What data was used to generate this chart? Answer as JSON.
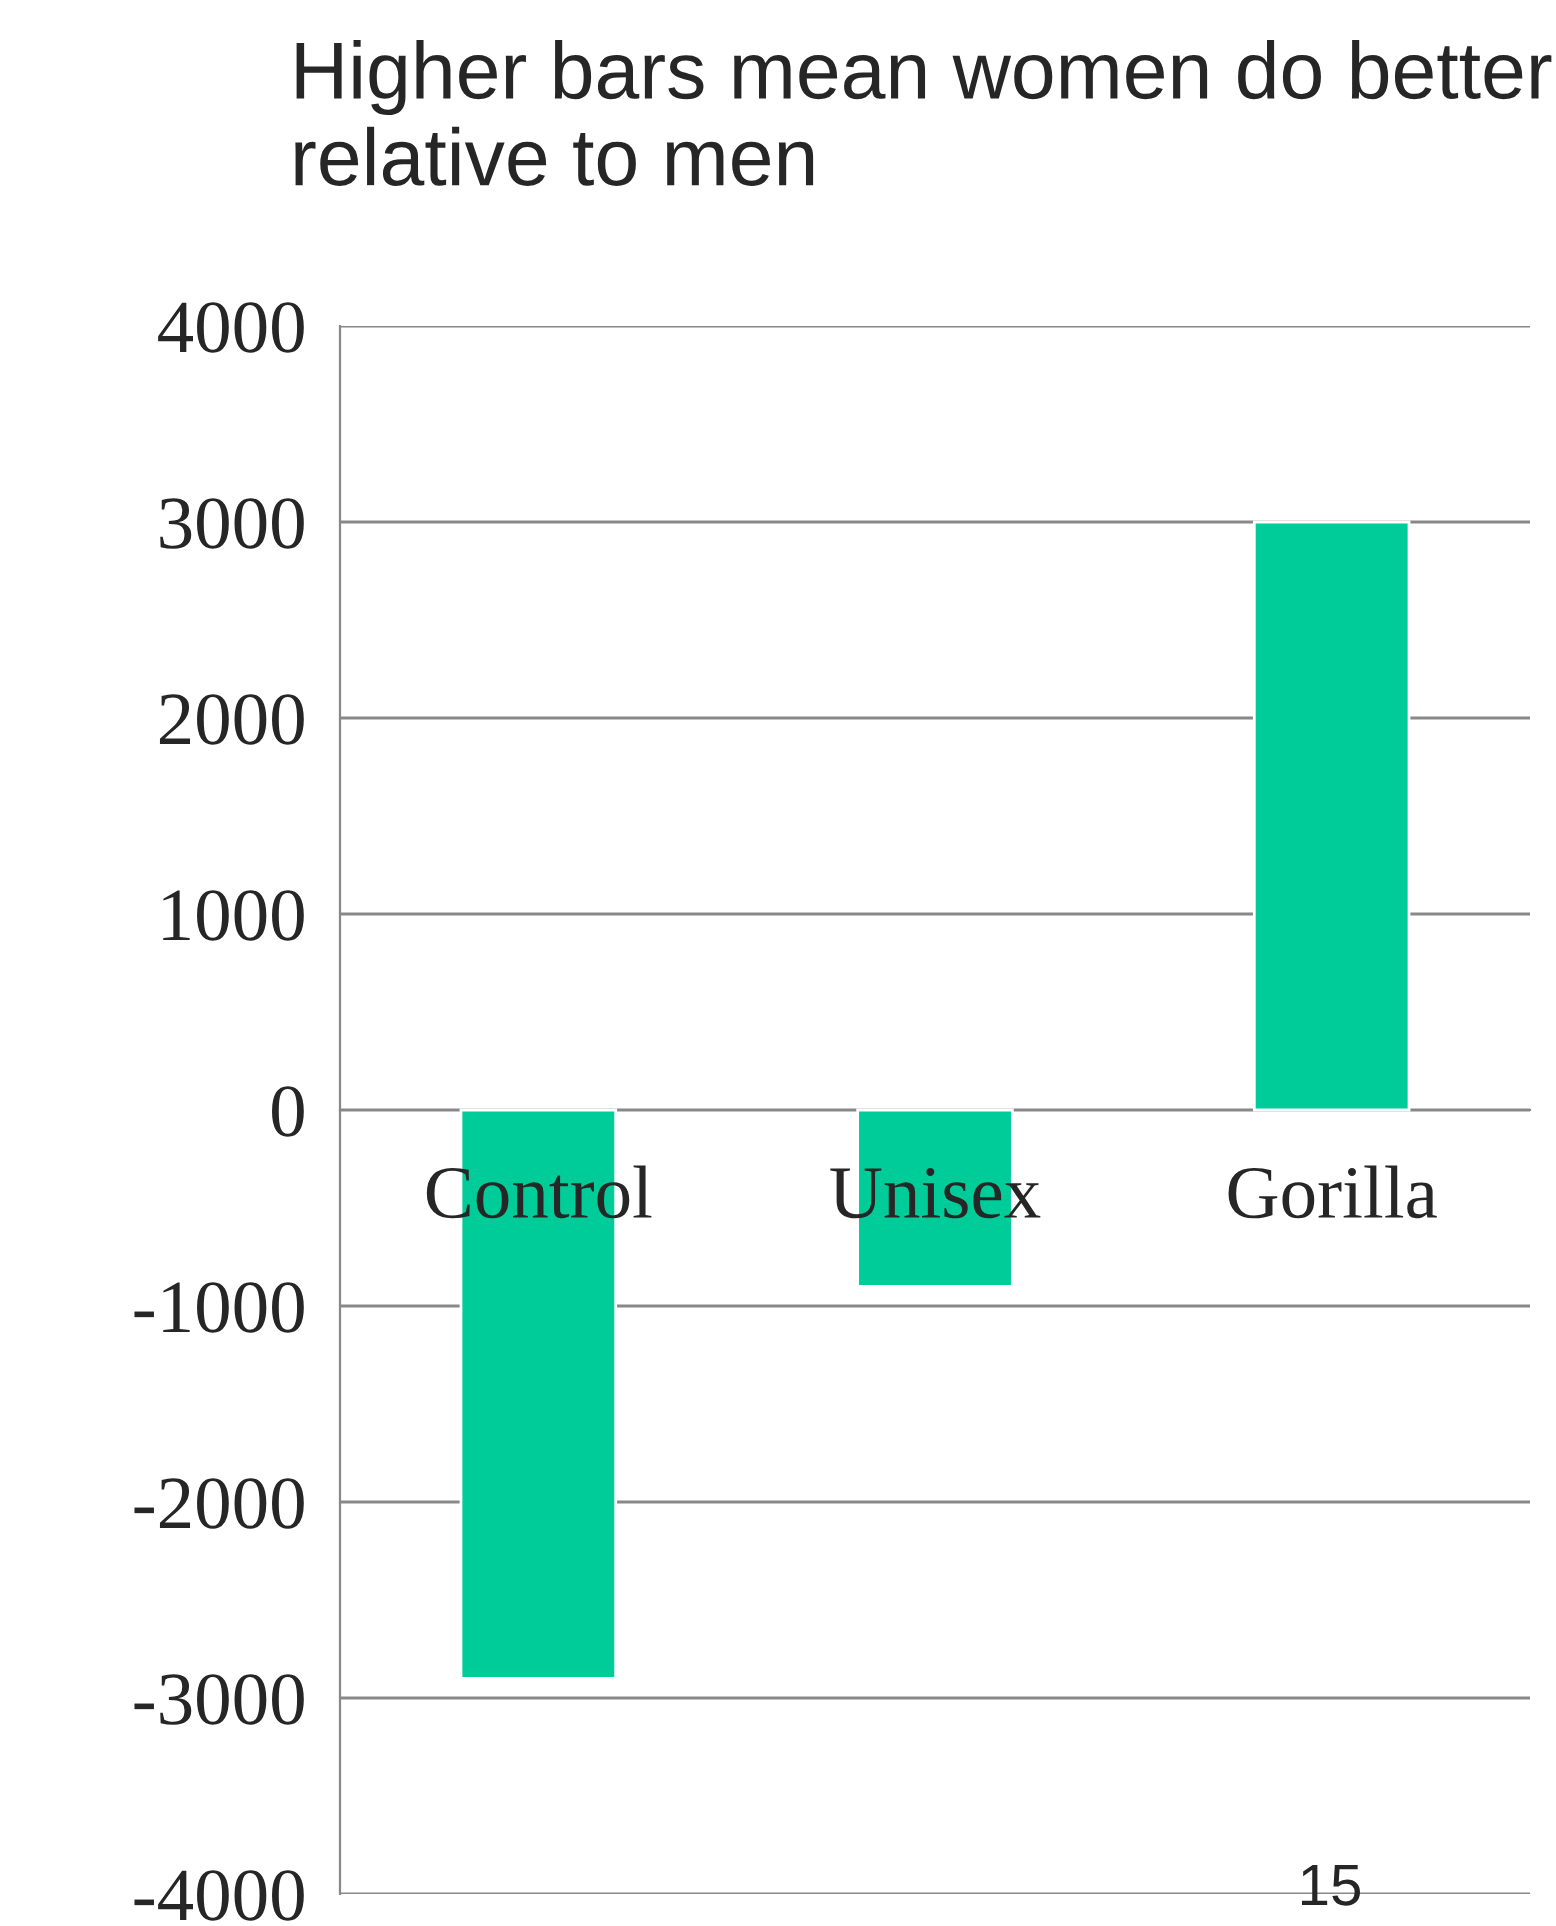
{
  "chart_data": {
    "type": "bar",
    "title": "Higher bars mean women do better relative to men",
    "categories": [
      "Control",
      "Unisex",
      "Gorilla"
    ],
    "values": [
      -2900,
      -900,
      3000
    ],
    "color": "#00cc99",
    "ylim": [
      -4000,
      4000
    ],
    "yticks": [
      -4000,
      -3000,
      -2000,
      -1000,
      0,
      1000,
      2000,
      3000,
      4000
    ],
    "grid": "y",
    "annotations": [
      "15"
    ]
  }
}
